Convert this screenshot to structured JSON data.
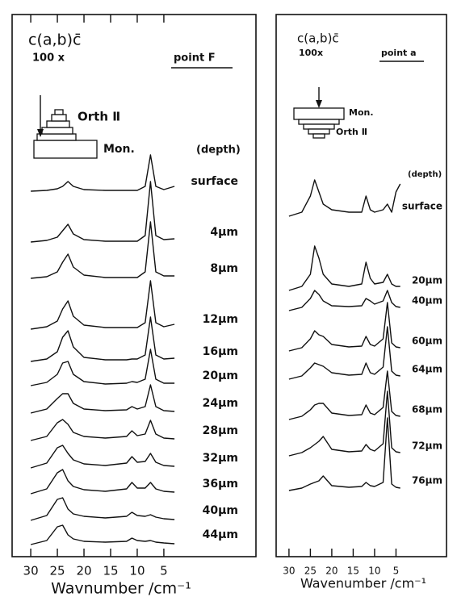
{
  "chart_data": [
    {
      "type": "line",
      "geometry": "c(a,b)c̄",
      "magnification": "100 x",
      "point": "point F",
      "diagram_labels": [
        "Orth Ⅱ",
        "Mon."
      ],
      "legend_title": "(depth)",
      "x_label": "Wavnumber /cm⁻¹",
      "xlim": [
        33.5,
        -12.3
      ],
      "xticks": [
        30,
        25,
        20,
        15,
        10,
        5
      ],
      "x": [
        30,
        27,
        25,
        24,
        23,
        22,
        20,
        16,
        12,
        11,
        10,
        8.5,
        7.5,
        6.5,
        5,
        3
      ],
      "series": [
        {
          "name": "surface",
          "color": "#111111",
          "values": [
            0,
            1,
            3,
            6,
            12,
            6,
            2,
            1,
            1,
            1,
            1,
            6,
            45,
            6,
            2,
            6
          ]
        },
        {
          "name": "4μm",
          "color": "#111111",
          "values": [
            0,
            2,
            6,
            14,
            22,
            10,
            3,
            1,
            1,
            1,
            1,
            8,
            75,
            8,
            3,
            4
          ]
        },
        {
          "name": "8μm",
          "color": "#111111",
          "values": [
            0,
            2,
            8,
            20,
            30,
            14,
            4,
            1,
            1,
            1,
            1,
            8,
            70,
            8,
            3,
            3
          ]
        },
        {
          "name": "12μm",
          "color": "#111111",
          "values": [
            0,
            3,
            10,
            25,
            35,
            16,
            5,
            2,
            2,
            2,
            2,
            8,
            60,
            8,
            3,
            6
          ]
        },
        {
          "name": "16μm",
          "color": "#111111",
          "values": [
            0,
            3,
            12,
            30,
            38,
            18,
            5,
            2,
            2,
            3,
            3,
            8,
            55,
            8,
            3,
            4
          ]
        },
        {
          "name": "20μm",
          "color": "#111111",
          "values": [
            0,
            4,
            14,
            28,
            30,
            14,
            5,
            2,
            3,
            5,
            4,
            8,
            45,
            8,
            3,
            3
          ]
        },
        {
          "name": "24μm",
          "color": "#111111",
          "values": [
            0,
            5,
            18,
            24,
            24,
            12,
            5,
            3,
            4,
            8,
            5,
            8,
            35,
            8,
            3,
            2
          ]
        },
        {
          "name": "28μm",
          "color": "#111111",
          "values": [
            0,
            5,
            22,
            26,
            20,
            10,
            5,
            3,
            5,
            12,
            6,
            8,
            25,
            8,
            3,
            2
          ]
        },
        {
          "name": "32μm",
          "color": "#111111",
          "values": [
            0,
            6,
            25,
            28,
            18,
            10,
            5,
            3,
            6,
            14,
            7,
            8,
            18,
            7,
            3,
            2
          ]
        },
        {
          "name": "36μm",
          "color": "#111111",
          "values": [
            0,
            6,
            26,
            30,
            16,
            9,
            5,
            3,
            6,
            14,
            7,
            7,
            14,
            6,
            3,
            2
          ]
        },
        {
          "name": "40μm",
          "color": "#111111",
          "values": [
            0,
            6,
            26,
            28,
            14,
            8,
            5,
            3,
            5,
            10,
            6,
            5,
            7,
            4,
            2,
            1
          ]
        },
        {
          "name": "44μm",
          "color": "#111111",
          "values": [
            0,
            5,
            22,
            24,
            12,
            7,
            4,
            3,
            4,
            8,
            5,
            4,
            5,
            3,
            2,
            1
          ]
        }
      ]
    },
    {
      "type": "line",
      "geometry": "c(a,b)c̄",
      "magnification": "100x",
      "point": "point a",
      "diagram_labels": [
        "Mon.",
        "Orth Ⅱ"
      ],
      "legend_title": "(depth)",
      "x_label": "Wavenumber /cm⁻¹",
      "xlim": [
        33,
        -6.8
      ],
      "xticks": [
        30,
        25,
        20,
        15,
        10,
        5
      ],
      "x": [
        30,
        27,
        25,
        24,
        23,
        22,
        20,
        16,
        13,
        12,
        11,
        10,
        8,
        7,
        6,
        5,
        4
      ],
      "series": [
        {
          "name": "surface",
          "color": "#111111",
          "values": [
            0,
            5,
            25,
            45,
            30,
            15,
            8,
            5,
            5,
            25,
            8,
            5,
            8,
            15,
            5,
            30,
            40
          ]
        },
        {
          "name": "20μm",
          "color": "#111111",
          "values": [
            0,
            5,
            20,
            55,
            40,
            20,
            8,
            5,
            8,
            35,
            15,
            8,
            10,
            20,
            8,
            5,
            5
          ]
        },
        {
          "name": "40μm",
          "color": "#111111",
          "values": [
            0,
            4,
            15,
            25,
            20,
            12,
            6,
            5,
            6,
            15,
            12,
            8,
            12,
            25,
            10,
            5,
            4
          ]
        },
        {
          "name": "60μm",
          "color": "#111111",
          "values": [
            0,
            4,
            15,
            25,
            20,
            18,
            8,
            5,
            6,
            18,
            8,
            6,
            15,
            60,
            10,
            5,
            4
          ]
        },
        {
          "name": "64μm",
          "color": "#111111",
          "values": [
            0,
            4,
            14,
            20,
            18,
            16,
            8,
            5,
            6,
            20,
            8,
            6,
            15,
            65,
            10,
            5,
            4
          ]
        },
        {
          "name": "68μm",
          "color": "#111111",
          "values": [
            0,
            4,
            12,
            18,
            20,
            20,
            8,
            5,
            6,
            18,
            8,
            6,
            15,
            60,
            10,
            5,
            4
          ]
        },
        {
          "name": "72μm",
          "color": "#111111",
          "values": [
            0,
            4,
            10,
            14,
            18,
            24,
            8,
            5,
            6,
            14,
            8,
            6,
            15,
            80,
            10,
            5,
            4
          ]
        },
        {
          "name": "76μm",
          "color": "#111111",
          "values": [
            0,
            3,
            8,
            10,
            12,
            18,
            6,
            4,
            5,
            10,
            6,
            5,
            10,
            90,
            8,
            4,
            3
          ]
        }
      ]
    }
  ]
}
